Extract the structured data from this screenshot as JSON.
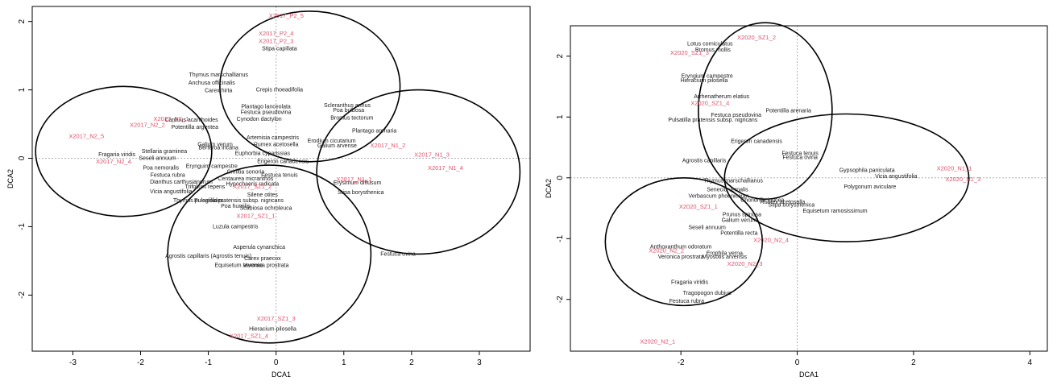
{
  "chart_data": [
    {
      "type": "scatter",
      "title": "",
      "xlabel": "DCA1",
      "ylabel": "DCA2",
      "xlim": [
        -3.6,
        3.75
      ],
      "ylim": [
        -2.82,
        2.22
      ],
      "xticks": [
        -3,
        -2,
        -1,
        0,
        1,
        2,
        3
      ],
      "yticks": [
        -2,
        -1,
        0,
        1,
        2
      ],
      "grid": false,
      "colors": {
        "sites": "#e0506a",
        "species": "#1a1a1a"
      },
      "ellipses": [
        {
          "cx": -2.25,
          "cy": 0.1,
          "rx": 1.3,
          "ry": 0.95
        },
        {
          "cx": 0.5,
          "cy": 1.05,
          "rx": 1.33,
          "ry": 1.1
        },
        {
          "cx": 2.1,
          "cy": -0.2,
          "rx": 1.5,
          "ry": 1.2
        },
        {
          "cx": -0.1,
          "cy": -1.4,
          "rx": 1.5,
          "ry": 1.3
        }
      ],
      "sites": [
        {
          "label": "X2017_P2_5",
          "x": 0.15,
          "y": 2.08
        },
        {
          "label": "X2017_P2_4",
          "x": 0.0,
          "y": 1.82
        },
        {
          "label": "X2017_P2_3",
          "x": 0.0,
          "y": 1.71
        },
        {
          "label": "X2017_N2_5",
          "x": -2.8,
          "y": 0.32
        },
        {
          "label": "X2017_N2_2",
          "x": -1.9,
          "y": 0.48
        },
        {
          "label": "X2017_N2_4",
          "x": -2.4,
          "y": -0.05
        },
        {
          "label": "X2017_N2_1",
          "x": -1.55,
          "y": 0.57
        },
        {
          "label": "X2017_N1_2",
          "x": 1.65,
          "y": 0.18
        },
        {
          "label": "X2017_N1_4",
          "x": 2.5,
          "y": -0.15
        },
        {
          "label": "X2017_N1_3",
          "x": 2.3,
          "y": 0.05
        },
        {
          "label": "X2017_N1_1",
          "x": 1.15,
          "y": -0.31
        },
        {
          "label": "X2017_SZ1_1",
          "x": -0.3,
          "y": -0.85
        },
        {
          "label": "X2017_SZ1_2",
          "x": -0.35,
          "y": -0.42
        },
        {
          "label": "X2017_SZ1_3",
          "x": 0.0,
          "y": -2.35
        },
        {
          "label": "X2017_SZ1_4",
          "x": -0.4,
          "y": -2.6
        }
      ],
      "species": [
        {
          "label": "Stipa capillata",
          "x": 0.05,
          "y": 1.6
        },
        {
          "label": "Thymus marschallianus",
          "x": -0.85,
          "y": 1.22
        },
        {
          "label": "Anchusa officinalis",
          "x": -0.95,
          "y": 1.1
        },
        {
          "label": "Carex hirta",
          "x": -0.85,
          "y": 0.99
        },
        {
          "label": "Crepis rhoeadifolia",
          "x": 0.05,
          "y": 1.0
        },
        {
          "label": "Plantago lanceolata",
          "x": -0.15,
          "y": 0.75
        },
        {
          "label": "Festuca pseudovina",
          "x": -0.15,
          "y": 0.67
        },
        {
          "label": "Cynodon dactylon",
          "x": -0.25,
          "y": 0.57
        },
        {
          "label": "Scleranthus annus",
          "x": 1.05,
          "y": 0.77
        },
        {
          "label": "Poa bulbosa",
          "x": 1.07,
          "y": 0.7
        },
        {
          "label": "Bromus tectorum",
          "x": 1.12,
          "y": 0.59
        },
        {
          "label": "Carduus acanthoides",
          "x": -1.25,
          "y": 0.56
        },
        {
          "label": "Potentilla argentea",
          "x": -1.2,
          "y": 0.45
        },
        {
          "label": "Plantago arenaria",
          "x": 1.45,
          "y": 0.4
        },
        {
          "label": "Artemisia campestris",
          "x": -0.05,
          "y": 0.3
        },
        {
          "label": "Galium verum",
          "x": -0.9,
          "y": 0.2
        },
        {
          "label": "Berteroa incana",
          "x": -0.85,
          "y": 0.15
        },
        {
          "label": "Rumex acetosella",
          "x": 0.0,
          "y": 0.2
        },
        {
          "label": "Euphorbia cyparissias",
          "x": -0.2,
          "y": 0.07
        },
        {
          "label": "Erodium cicutarium",
          "x": 0.82,
          "y": 0.25
        },
        {
          "label": "Galium arvense",
          "x": 0.9,
          "y": 0.18
        },
        {
          "label": "Erigeron canadensis",
          "x": 0.1,
          "y": -0.05
        },
        {
          "label": "Fragaria viridis",
          "x": -2.35,
          "y": 0.05
        },
        {
          "label": "Stellaria graminea",
          "x": -1.65,
          "y": 0.1
        },
        {
          "label": "Seseli annuum",
          "x": -1.75,
          "y": 0.0
        },
        {
          "label": "Poa nemoralis",
          "x": -1.7,
          "y": -0.14
        },
        {
          "label": "Festuca rubra",
          "x": -1.6,
          "y": -0.25
        },
        {
          "label": "Dianthus carthusianorum",
          "x": -1.4,
          "y": -0.35
        },
        {
          "label": "Vicia angustifolia",
          "x": -1.55,
          "y": -0.49
        },
        {
          "label": "Erynguim campestre",
          "x": -0.95,
          "y": -0.12
        },
        {
          "label": "Crinitia sonoria",
          "x": -0.45,
          "y": -0.2
        },
        {
          "label": "Centaurea micranthos",
          "x": -0.45,
          "y": -0.3
        },
        {
          "label": "Hypochaeris radicata",
          "x": -0.35,
          "y": -0.38
        },
        {
          "label": "Festuca tenuis",
          "x": 0.05,
          "y": -0.25
        },
        {
          "label": "Trifolium repens",
          "x": -1.05,
          "y": -0.42
        },
        {
          "label": "Thymus pulegioides",
          "x": -1.15,
          "y": -0.62
        },
        {
          "label": "Pulsatilla pratensis subsp. nigricans",
          "x": -0.55,
          "y": -0.62
        },
        {
          "label": "Silene otites",
          "x": -0.2,
          "y": -0.54
        },
        {
          "label": "Poa humilis",
          "x": -0.6,
          "y": -0.7
        },
        {
          "label": "Scabiosa ochroleuca",
          "x": -0.15,
          "y": -0.73
        },
        {
          "label": "Luzula campestris",
          "x": -0.6,
          "y": -1.0
        },
        {
          "label": "Erysimum diffusum",
          "x": 1.2,
          "y": -0.36
        },
        {
          "label": "Stipa borysthenica",
          "x": 1.25,
          "y": -0.5
        },
        {
          "label": "Festuca ovina",
          "x": 1.8,
          "y": -1.4
        },
        {
          "label": "Asperula cynanchica",
          "x": -0.25,
          "y": -1.3
        },
        {
          "label": "Agrostis capillaris (Agrostis tenuis)",
          "x": -1.0,
          "y": -1.43
        },
        {
          "label": "Carex praecox",
          "x": -0.2,
          "y": -1.47
        },
        {
          "label": "Equisetum arvense",
          "x": -0.55,
          "y": -1.57
        },
        {
          "label": "Veronica prostrata",
          "x": -0.15,
          "y": -1.57
        },
        {
          "label": "Hieracium pilosella",
          "x": -0.05,
          "y": -2.5
        }
      ]
    },
    {
      "type": "scatter",
      "title": "",
      "xlabel": "DCA1",
      "ylabel": "DCA2",
      "xlim": [
        -3.9,
        4.3
      ],
      "ylim": [
        -2.85,
        2.5
      ],
      "xticks": [
        -2,
        0,
        2,
        4
      ],
      "yticks": [
        -2,
        -1,
        0,
        1,
        2
      ],
      "grid": false,
      "colors": {
        "sites": "#e0506a",
        "species": "#1a1a1a"
      },
      "ellipses": [
        {
          "cx": -0.55,
          "cy": 1.1,
          "rx": 1.15,
          "ry": 1.45
        },
        {
          "cx": 0.85,
          "cy": 0.0,
          "rx": 2.1,
          "ry": 1.05
        },
        {
          "cx": -1.95,
          "cy": -1.05,
          "rx": 1.35,
          "ry": 1.05
        }
      ],
      "sites": [
        {
          "label": "X2020_SZ1_2",
          "x": -0.7,
          "y": 2.3
        },
        {
          "label": "X2020_SZ1_3",
          "x": -1.85,
          "y": 2.05
        },
        {
          "label": "X2020_SZ1_4",
          "x": -1.5,
          "y": 1.22
        },
        {
          "label": "X2020_SZ1_1",
          "x": -1.7,
          "y": -0.48
        },
        {
          "label": "X2020_N1_1",
          "x": 2.7,
          "y": 0.15
        },
        {
          "label": "X2020_N1_3",
          "x": 2.85,
          "y": -0.03
        },
        {
          "label": "X2020_N2_4",
          "x": -0.45,
          "y": -1.03
        },
        {
          "label": "X2020_N2_3",
          "x": -0.9,
          "y": -1.42
        },
        {
          "label": "X2020_N2_2",
          "x": -2.25,
          "y": -1.2
        },
        {
          "label": "X2020_N2_1",
          "x": -2.4,
          "y": -2.7
        }
      ],
      "species": [
        {
          "label": "Lotus corniculatus",
          "x": -1.5,
          "y": 2.2
        },
        {
          "label": "Bromus mollis",
          "x": -1.45,
          "y": 2.1
        },
        {
          "label": "Eryngium campestre",
          "x": -1.55,
          "y": 1.67
        },
        {
          "label": "Hieracium pilosella",
          "x": -1.6,
          "y": 1.6
        },
        {
          "label": "Arrhenatherum elatius",
          "x": -1.3,
          "y": 1.33
        },
        {
          "label": "Potentilla arenaria",
          "x": -0.15,
          "y": 1.1
        },
        {
          "label": "Festuca pseudovina",
          "x": -1.05,
          "y": 1.03
        },
        {
          "label": "Pulsatilla pratensis subsp. nigricans",
          "x": -1.45,
          "y": 0.95
        },
        {
          "label": "Erigeron canadensis",
          "x": -0.7,
          "y": 0.6
        },
        {
          "label": "Festuca tenuis",
          "x": 0.05,
          "y": 0.4
        },
        {
          "label": "Festuca ovina",
          "x": 0.05,
          "y": 0.33
        },
        {
          "label": "Agrostis capillaris",
          "x": -1.6,
          "y": 0.28
        },
        {
          "label": "Gypsophila paniculata",
          "x": 1.2,
          "y": 0.12
        },
        {
          "label": "Vicia angustifolia",
          "x": 1.7,
          "y": 0.02
        },
        {
          "label": "Thymus marschallianus",
          "x": -1.1,
          "y": -0.05
        },
        {
          "label": "Senecio vernalis",
          "x": -1.2,
          "y": -0.2
        },
        {
          "label": "Polygonum aviculare",
          "x": 1.25,
          "y": -0.15
        },
        {
          "label": "Equisetum ramosissimum",
          "x": 0.65,
          "y": -0.55
        },
        {
          "label": "Rumex acetosella",
          "x": -0.25,
          "y": -0.4
        },
        {
          "label": "Stipa borysthenica",
          "x": -0.1,
          "y": -0.45
        },
        {
          "label": "Verbascum phoeniceum",
          "x": -1.35,
          "y": -0.3
        },
        {
          "label": "Chondrilla juncea",
          "x": -0.6,
          "y": -0.37
        },
        {
          "label": "Prunus spinosa",
          "x": -0.95,
          "y": -0.61
        },
        {
          "label": "Galium verum",
          "x": -1.0,
          "y": -0.7
        },
        {
          "label": "Seseli annuum",
          "x": -1.55,
          "y": -0.82
        },
        {
          "label": "Potentilla recta",
          "x": -1.0,
          "y": -0.91
        },
        {
          "label": "Anthoxanthum odoratum",
          "x": -2.0,
          "y": -1.14
        },
        {
          "label": "Veronica prostrata",
          "x": -2.0,
          "y": -1.3
        },
        {
          "label": "Erophila verna",
          "x": -1.25,
          "y": -1.24
        },
        {
          "label": "Myosotis arvensis",
          "x": -1.25,
          "y": -1.3
        },
        {
          "label": "Fragaria viridis",
          "x": -1.85,
          "y": -1.72
        },
        {
          "label": "Tragopogon dubius",
          "x": -1.55,
          "y": -1.9
        },
        {
          "label": "Festuca rubra",
          "x": -1.9,
          "y": -2.03
        }
      ]
    }
  ]
}
